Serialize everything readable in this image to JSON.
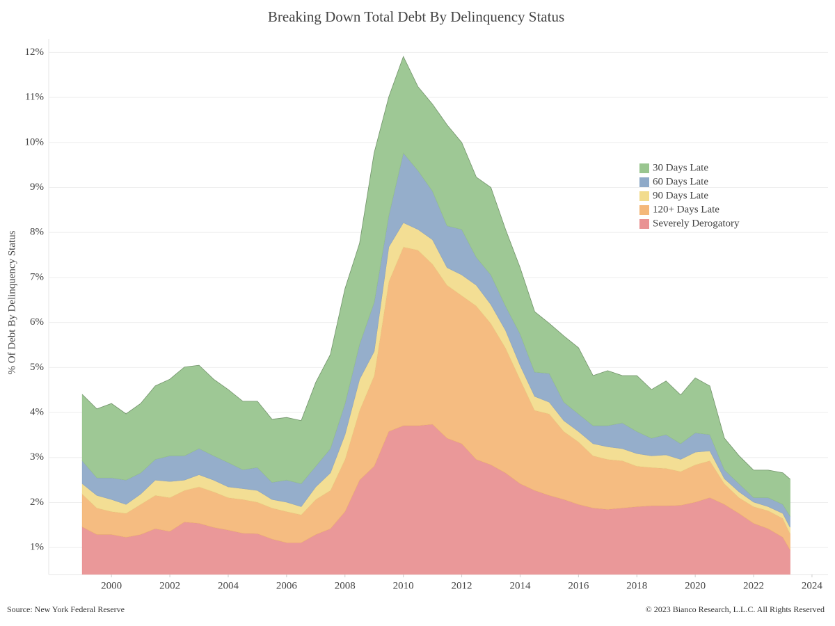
{
  "chart_data": {
    "type": "stacked_area",
    "title": "Breaking Down Total Debt By Delinquency Status",
    "y_label": "% Of Debt By Delinquency Status",
    "source": "Source: New York Federal Reserve",
    "copyright": "© 2023 Bianco Research, L.L.C. All Rights Reserved",
    "x": [
      1999,
      1999.5,
      2000,
      2000.5,
      2001,
      2001.5,
      2002,
      2002.5,
      2003,
      2003.5,
      2004,
      2004.5,
      2005,
      2005.5,
      2006,
      2006.5,
      2007,
      2007.5,
      2008,
      2008.5,
      2009,
      2009.5,
      2010,
      2010.5,
      2011,
      2011.5,
      2012,
      2012.5,
      2013,
      2013.5,
      2014,
      2014.5,
      2015,
      2015.5,
      2016,
      2016.5,
      2017,
      2017.5,
      2018,
      2018.5,
      2019,
      2019.5,
      2020,
      2020.5,
      2021,
      2021.5,
      2022,
      2022.5,
      2023,
      2023.25
    ],
    "series": [
      {
        "name": "Severely Derogatory",
        "color": "#e99293",
        "values": [
          1.46,
          1.29,
          1.29,
          1.23,
          1.29,
          1.42,
          1.36,
          1.57,
          1.54,
          1.45,
          1.39,
          1.32,
          1.31,
          1.19,
          1.11,
          1.11,
          1.29,
          1.42,
          1.8,
          2.5,
          2.81,
          3.58,
          3.71,
          3.71,
          3.74,
          3.43,
          3.31,
          2.96,
          2.84,
          2.66,
          2.42,
          2.27,
          2.16,
          2.07,
          1.96,
          1.88,
          1.85,
          1.88,
          1.91,
          1.93,
          1.93,
          1.94,
          2.01,
          2.11,
          1.96,
          1.76,
          1.54,
          1.42,
          1.23,
          0.95
        ]
      },
      {
        "name": "120+ Days Late",
        "color": "#f4b87a",
        "values": [
          0.73,
          0.59,
          0.51,
          0.53,
          0.67,
          0.74,
          0.75,
          0.7,
          0.81,
          0.79,
          0.72,
          0.75,
          0.7,
          0.69,
          0.69,
          0.62,
          0.78,
          0.85,
          1.16,
          1.55,
          2.01,
          3.33,
          3.97,
          3.9,
          3.56,
          3.4,
          3.29,
          3.41,
          3.14,
          2.78,
          2.32,
          1.78,
          1.81,
          1.51,
          1.39,
          1.16,
          1.11,
          1.05,
          0.9,
          0.85,
          0.83,
          0.75,
          0.83,
          0.82,
          0.46,
          0.35,
          0.37,
          0.4,
          0.42,
          0.36
        ]
      },
      {
        "name": "90 Days Late",
        "color": "#f2dc8e",
        "values": [
          0.23,
          0.28,
          0.27,
          0.2,
          0.23,
          0.34,
          0.36,
          0.23,
          0.27,
          0.26,
          0.24,
          0.24,
          0.26,
          0.19,
          0.21,
          0.18,
          0.28,
          0.39,
          0.55,
          0.69,
          0.54,
          0.77,
          0.54,
          0.46,
          0.54,
          0.39,
          0.46,
          0.46,
          0.42,
          0.39,
          0.31,
          0.31,
          0.26,
          0.24,
          0.23,
          0.27,
          0.28,
          0.27,
          0.28,
          0.26,
          0.3,
          0.27,
          0.28,
          0.22,
          0.11,
          0.13,
          0.1,
          0.09,
          0.11,
          0.14
        ]
      },
      {
        "name": "60 Days Late",
        "color": "#8faac8",
        "values": [
          0.51,
          0.39,
          0.48,
          0.54,
          0.47,
          0.46,
          0.57,
          0.54,
          0.58,
          0.54,
          0.54,
          0.42,
          0.51,
          0.38,
          0.49,
          0.51,
          0.46,
          0.54,
          0.69,
          0.78,
          1.09,
          0.7,
          1.55,
          1.31,
          1.08,
          0.93,
          1.01,
          0.62,
          0.66,
          0.54,
          0.7,
          0.54,
          0.64,
          0.41,
          0.39,
          0.4,
          0.47,
          0.57,
          0.49,
          0.39,
          0.45,
          0.35,
          0.43,
          0.36,
          0.2,
          0.18,
          0.1,
          0.2,
          0.2,
          0.25
        ]
      },
      {
        "name": "30 Days Late",
        "color": "#99c58f",
        "values": [
          1.47,
          1.53,
          1.65,
          1.47,
          1.54,
          1.63,
          1.7,
          1.97,
          1.85,
          1.7,
          1.62,
          1.52,
          1.47,
          1.4,
          1.39,
          1.4,
          1.86,
          2.09,
          2.55,
          2.24,
          3.32,
          2.63,
          2.14,
          1.86,
          1.93,
          2.24,
          1.93,
          1.78,
          1.94,
          1.7,
          1.47,
          1.34,
          1.11,
          1.47,
          1.47,
          1.11,
          1.22,
          1.05,
          1.24,
          1.08,
          1.19,
          1.08,
          1.22,
          1.08,
          0.7,
          0.62,
          0.61,
          0.61,
          0.7,
          0.82
        ]
      }
    ],
    "xlim": [
      1997.85,
      2024.55
    ],
    "xticks": [
      2000,
      2002,
      2004,
      2006,
      2008,
      2010,
      2012,
      2014,
      2016,
      2018,
      2020,
      2022,
      2024
    ],
    "ylim": [
      0.4,
      12.3
    ],
    "yticks": [
      {
        "value": 1,
        "label": "1%"
      },
      {
        "value": 2,
        "label": "2%"
      },
      {
        "value": 3,
        "label": "3%"
      },
      {
        "value": 4,
        "label": "4%"
      },
      {
        "value": 5,
        "label": "5%"
      },
      {
        "value": 6,
        "label": "6%"
      },
      {
        "value": 7,
        "label": "7%"
      },
      {
        "value": 8,
        "label": "8%"
      },
      {
        "value": 9,
        "label": "9%"
      },
      {
        "value": 10,
        "label": "10%"
      },
      {
        "value": 11,
        "label": "11%"
      },
      {
        "value": 12,
        "label": "12%"
      }
    ],
    "grid": true
  }
}
